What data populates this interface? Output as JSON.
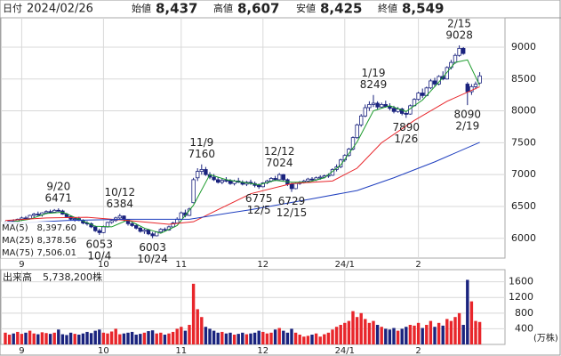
{
  "header": {
    "date_label": "日付",
    "date": "2024/02/26",
    "items": [
      {
        "label": "始値",
        "value": {
          "value": 8437,
          "label": "8,437"
        },
        "color": "#222222"
      },
      {
        "label": "高値",
        "value": {
          "value": 8607,
          "label": "8,607"
        },
        "color": "#e8262b"
      },
      {
        "label": "安値",
        "value": {
          "value": 8425,
          "label": "8,425"
        },
        "color": "#1a9a2a"
      },
      {
        "label": "終値",
        "value": {
          "value": 8549,
          "label": "8,549"
        },
        "color": "#222222"
      }
    ]
  },
  "chart_data": {
    "type": "candlestick",
    "up_color": "#ffffff",
    "down_color": "#1a237e",
    "edge_color": "#1a237e",
    "ylim": [
      5690,
      9460
    ],
    "yticks": [
      6000,
      6500,
      7000,
      7500,
      8000,
      8500,
      9000
    ],
    "grid": true,
    "xticks": [
      {
        "value": 4,
        "label": "9"
      },
      {
        "value": 24,
        "label": "10"
      },
      {
        "value": 43,
        "label": "11"
      },
      {
        "value": 63,
        "label": "12"
      },
      {
        "value": 83,
        "label": "24/1"
      },
      {
        "value": 101,
        "label": "2"
      }
    ],
    "candles": [
      [
        6230,
        6270,
        6210,
        6250
      ],
      [
        6250,
        6290,
        6230,
        6270
      ],
      [
        6270,
        6300,
        6240,
        6260
      ],
      [
        6260,
        6310,
        6250,
        6300
      ],
      [
        6300,
        6340,
        6280,
        6320
      ],
      [
        6320,
        6350,
        6290,
        6310
      ],
      [
        6310,
        6370,
        6300,
        6360
      ],
      [
        6360,
        6400,
        6330,
        6380
      ],
      [
        6380,
        6420,
        6350,
        6370
      ],
      [
        6370,
        6410,
        6340,
        6400
      ],
      [
        6400,
        6440,
        6380,
        6420
      ],
      [
        6420,
        6450,
        6390,
        6410
      ],
      [
        6410,
        6460,
        6400,
        6440
      ],
      [
        6440,
        6471,
        6420,
        6430
      ],
      [
        6430,
        6450,
        6370,
        6380
      ],
      [
        6380,
        6400,
        6320,
        6340
      ],
      [
        6340,
        6360,
        6280,
        6300
      ],
      [
        6300,
        6330,
        6260,
        6310
      ],
      [
        6310,
        6340,
        6270,
        6280
      ],
      [
        6280,
        6300,
        6220,
        6240
      ],
      [
        6240,
        6270,
        6200,
        6230
      ],
      [
        6230,
        6250,
        6160,
        6180
      ],
      [
        6180,
        6200,
        6100,
        6120
      ],
      [
        6120,
        6150,
        6053,
        6090
      ],
      [
        6090,
        6200,
        6080,
        6180
      ],
      [
        6180,
        6260,
        6170,
        6250
      ],
      [
        6250,
        6300,
        6230,
        6280
      ],
      [
        6280,
        6340,
        6260,
        6320
      ],
      [
        6320,
        6384,
        6300,
        6350
      ],
      [
        6350,
        6360,
        6270,
        6290
      ],
      [
        6290,
        6300,
        6200,
        6230
      ],
      [
        6230,
        6260,
        6180,
        6200
      ],
      [
        6200,
        6230,
        6140,
        6160
      ],
      [
        6160,
        6180,
        6090,
        6110
      ],
      [
        6110,
        6150,
        6070,
        6130
      ],
      [
        6130,
        6140,
        6050,
        6070
      ],
      [
        6070,
        6100,
        6003,
        6040
      ],
      [
        6040,
        6110,
        6030,
        6100
      ],
      [
        6100,
        6160,
        6080,
        6140
      ],
      [
        6140,
        6170,
        6110,
        6130
      ],
      [
        6130,
        6200,
        6120,
        6180
      ],
      [
        6180,
        6260,
        6170,
        6240
      ],
      [
        6240,
        6330,
        6230,
        6300
      ],
      [
        6300,
        6420,
        6290,
        6400
      ],
      [
        6400,
        6450,
        6330,
        6360
      ],
      [
        6360,
        6480,
        6350,
        6460
      ],
      [
        6560,
        6950,
        6550,
        6920
      ],
      [
        6950,
        7100,
        6900,
        7050
      ],
      [
        7050,
        7160,
        7000,
        7080
      ],
      [
        7080,
        7120,
        6980,
        7000
      ],
      [
        7000,
        7040,
        6930,
        6960
      ],
      [
        6960,
        7010,
        6900,
        6920
      ],
      [
        6920,
        6960,
        6860,
        6880
      ],
      [
        6880,
        6940,
        6850,
        6910
      ],
      [
        6910,
        6960,
        6880,
        6900
      ],
      [
        6900,
        6930,
        6840,
        6860
      ],
      [
        6860,
        6920,
        6830,
        6900
      ],
      [
        6900,
        6950,
        6870,
        6880
      ],
      [
        6880,
        6910,
        6830,
        6850
      ],
      [
        6850,
        6900,
        6820,
        6880
      ],
      [
        6880,
        6920,
        6840,
        6860
      ],
      [
        6860,
        6890,
        6800,
        6830
      ],
      [
        6830,
        6860,
        6775,
        6810
      ],
      [
        6810,
        6880,
        6800,
        6870
      ],
      [
        6870,
        6920,
        6850,
        6900
      ],
      [
        6900,
        6960,
        6880,
        6940
      ],
      [
        6940,
        6980,
        6900,
        6920
      ],
      [
        6920,
        7024,
        6910,
        7000
      ],
      [
        7000,
        7010,
        6900,
        6920
      ],
      [
        6920,
        6940,
        6820,
        6850
      ],
      [
        6850,
        6870,
        6729,
        6780
      ],
      [
        6780,
        6880,
        6770,
        6860
      ],
      [
        6860,
        6900,
        6840,
        6880
      ],
      [
        6880,
        6920,
        6860,
        6900
      ],
      [
        6900,
        6950,
        6880,
        6930
      ],
      [
        6930,
        6960,
        6900,
        6920
      ],
      [
        6920,
        6970,
        6900,
        6950
      ],
      [
        6950,
        6990,
        6920,
        6960
      ],
      [
        6960,
        7000,
        6940,
        6980
      ],
      [
        6980,
        7020,
        6950,
        6990
      ],
      [
        6990,
        7100,
        6980,
        7080
      ],
      [
        7080,
        7160,
        7050,
        7120
      ],
      [
        7120,
        7250,
        7100,
        7230
      ],
      [
        7230,
        7320,
        7200,
        7300
      ],
      [
        7300,
        7420,
        7280,
        7400
      ],
      [
        7400,
        7600,
        7380,
        7580
      ],
      [
        7580,
        7800,
        7560,
        7780
      ],
      [
        7780,
        7950,
        7750,
        7920
      ],
      [
        7920,
        8100,
        7900,
        8050
      ],
      [
        8050,
        8150,
        8000,
        8100
      ],
      [
        8100,
        8249,
        8060,
        8120
      ],
      [
        8120,
        8150,
        8020,
        8060
      ],
      [
        8060,
        8130,
        8040,
        8100
      ],
      [
        8100,
        8160,
        8050,
        8070
      ],
      [
        8070,
        8120,
        8010,
        8040
      ],
      [
        8040,
        8080,
        7960,
        7990
      ],
      [
        7990,
        8060,
        7970,
        8030
      ],
      [
        8030,
        8050,
        7930,
        7960
      ],
      [
        7960,
        7990,
        7890,
        7950
      ],
      [
        7950,
        8100,
        7940,
        8080
      ],
      [
        8080,
        8200,
        8070,
        8180
      ],
      [
        8180,
        8300,
        8160,
        8280
      ],
      [
        8280,
        8350,
        8200,
        8240
      ],
      [
        8240,
        8380,
        8230,
        8360
      ],
      [
        8360,
        8500,
        8340,
        8470
      ],
      [
        8470,
        8520,
        8380,
        8420
      ],
      [
        8420,
        8560,
        8400,
        8540
      ],
      [
        8540,
        8620,
        8480,
        8500
      ],
      [
        8500,
        8700,
        8490,
        8680
      ],
      [
        8680,
        8800,
        8650,
        8760
      ],
      [
        8760,
        8900,
        8740,
        8870
      ],
      [
        8870,
        9028,
        8850,
        8980
      ],
      [
        8980,
        9000,
        8880,
        8900
      ],
      [
        8420,
        8450,
        8090,
        8300
      ],
      [
        8300,
        8420,
        8250,
        8380
      ],
      [
        8380,
        8460,
        8340,
        8420
      ],
      [
        8437,
        8607,
        8425,
        8549
      ]
    ],
    "ma": [
      {
        "name": "MA(5)",
        "color": "#1a9a2a",
        "legend_value": {
          "value": 8397.6,
          "label": "8,397.60"
        },
        "x": [
          2,
          6,
          10,
          14,
          18,
          22,
          26,
          30,
          34,
          38,
          42,
          46,
          50,
          54,
          58,
          62,
          66,
          70,
          74,
          78,
          82,
          86,
          90,
          94,
          98,
          102,
          106,
          110,
          113,
          116
        ],
        "values": [
          6260,
          6300,
          6390,
          6410,
          6300,
          6190,
          6180,
          6290,
          6160,
          6080,
          6200,
          6520,
          7000,
          6920,
          6880,
          6840,
          6910,
          6880,
          6880,
          6950,
          7150,
          7510,
          8000,
          8080,
          7990,
          8170,
          8450,
          8760,
          8800,
          8397.6
        ]
      },
      {
        "name": "MA(25)",
        "color": "#e8262b",
        "legend_value": {
          "value": 8378.56,
          "label": "8,378.56"
        },
        "x": [
          0,
          10,
          20,
          30,
          40,
          46,
          52,
          60,
          70,
          80,
          86,
          92,
          100,
          108,
          116
        ],
        "values": [
          6280,
          6320,
          6330,
          6280,
          6220,
          6260,
          6450,
          6700,
          6860,
          6900,
          7100,
          7500,
          7850,
          8150,
          8378.56
        ]
      },
      {
        "name": "MA(75)",
        "color": "#1f3fbf",
        "legend_value": {
          "value": 7506.01,
          "label": "7,506.01"
        },
        "x": [
          0,
          15,
          30,
          45,
          60,
          75,
          86,
          95,
          105,
          116
        ],
        "values": [
          6230,
          6280,
          6300,
          6300,
          6450,
          6620,
          6750,
          6950,
          7200,
          7506.01
        ]
      }
    ],
    "annotations": [
      {
        "label": "9/20",
        "value": 6471,
        "index": 13
      },
      {
        "label": "10/4",
        "value": 6053,
        "index": 23
      },
      {
        "label": "10/12",
        "value": 6384,
        "index": 28
      },
      {
        "label": "10/24",
        "value": 6003,
        "index": 36
      },
      {
        "label": "11/9",
        "value": 7160,
        "index": 48
      },
      {
        "label": "12/5",
        "value": 6775,
        "index": 62
      },
      {
        "label": "12/12",
        "value": 7024,
        "index": 67
      },
      {
        "label": "12/15",
        "value": 6729,
        "index": 70
      },
      {
        "label": "1/19",
        "value": 8249,
        "index": 90
      },
      {
        "label": "1/26",
        "value": 7890,
        "index": 98
      },
      {
        "label": "2/15",
        "value": 9028,
        "index": 111
      },
      {
        "label": "2/19",
        "value": 8090,
        "index": 113
      }
    ],
    "volume": {
      "title": "出来高",
      "latest": {
        "value": 573.82,
        "label": "5,738,200株"
      },
      "unit": "(万株)",
      "up_color": "#e8262b",
      "down_color": "#1a237e",
      "ylim": [
        0,
        1910
      ],
      "yticks": [
        400,
        800,
        1200,
        1600
      ],
      "values": [
        300,
        250,
        280,
        320,
        270,
        300,
        350,
        280,
        260,
        310,
        290,
        270,
        300,
        380,
        260,
        240,
        300,
        270,
        250,
        280,
        320,
        290,
        350,
        380,
        300,
        280,
        330,
        400,
        260,
        280,
        300,
        320,
        250,
        270,
        300,
        340,
        360,
        280,
        300,
        250,
        280,
        320,
        400,
        450,
        350,
        500,
        1550,
        900,
        700,
        450,
        400,
        350,
        300,
        320,
        280,
        300,
        250,
        270,
        300,
        260,
        280,
        300,
        350,
        320,
        280,
        300,
        380,
        420,
        350,
        300,
        400,
        300,
        250,
        200,
        220,
        250,
        280,
        200,
        260,
        300,
        380,
        450,
        500,
        550,
        600,
        850,
        700,
        800,
        650,
        550,
        600,
        500,
        450,
        400,
        380,
        420,
        350,
        400,
        450,
        500,
        480,
        550,
        420,
        500,
        600,
        450,
        550,
        480,
        650,
        600,
        700,
        800,
        500,
        1650,
        1100,
        600,
        573.82
      ]
    }
  }
}
